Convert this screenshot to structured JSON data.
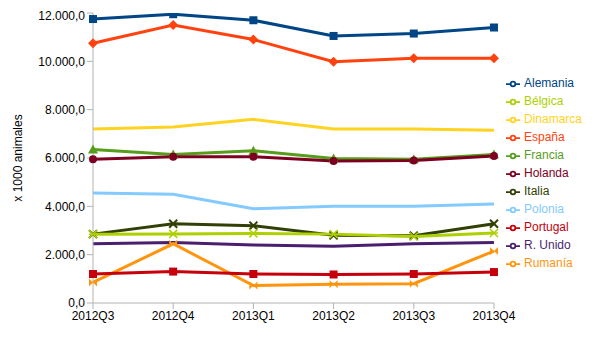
{
  "chart_data": {
    "type": "line",
    "y_label": "x 1000 animales",
    "categories": [
      "2012Q3",
      "2012Q4",
      "2013Q1",
      "2013Q2",
      "2013Q3",
      "2013Q4"
    ],
    "ylim": [
      0,
      12000
    ],
    "yticks": [
      {
        "value": 0,
        "label": "0,0"
      },
      {
        "value": 2000,
        "label": "2.000,0"
      },
      {
        "value": 4000,
        "label": "4.000,0"
      },
      {
        "value": 6000,
        "label": "6.000,0"
      },
      {
        "value": 8000,
        "label": "8.000,0"
      },
      {
        "value": 10000,
        "label": "10.000,0"
      },
      {
        "value": 12000,
        "label": "12.000,0"
      }
    ],
    "grid": false,
    "legend": "right",
    "series": [
      {
        "name": "Alemania",
        "color": "#004586",
        "marker": "square",
        "values": [
          11750,
          11950,
          11700,
          11050,
          11150,
          11400
        ]
      },
      {
        "name": "España",
        "color": "#ff420e",
        "marker": "diamond",
        "values": [
          10750,
          11500,
          10900,
          9980,
          10130,
          10130
        ]
      },
      {
        "name": "Dinamarca",
        "color": "#ffd320",
        "marker": "none",
        "values": [
          7200,
          7280,
          7600,
          7200,
          7200,
          7150
        ]
      },
      {
        "name": "Francia",
        "color": "#579d1c",
        "marker": "triangle",
        "values": [
          6350,
          6150,
          6300,
          5980,
          5950,
          6150
        ]
      },
      {
        "name": "Holanda",
        "color": "#7e0021",
        "marker": "circle",
        "values": [
          5950,
          6050,
          6050,
          5880,
          5900,
          6080
        ]
      },
      {
        "name": "Polonia",
        "color": "#83caff",
        "marker": "none",
        "values": [
          4550,
          4500,
          3900,
          4000,
          4000,
          4100
        ]
      },
      {
        "name": "Italia",
        "color": "#314004",
        "marker": "x",
        "values": [
          2850,
          3280,
          3200,
          2800,
          2780,
          3280
        ]
      },
      {
        "name": "Bélgica",
        "color": "#aecf00",
        "marker": "asterisk",
        "values": [
          2850,
          2860,
          2880,
          2850,
          2750,
          2900
        ]
      },
      {
        "name": "R. Unido",
        "color": "#4b1f6f",
        "marker": "none",
        "values": [
          2450,
          2500,
          2400,
          2350,
          2450,
          2500
        ]
      },
      {
        "name": "Rumanía",
        "color": "#ff950e",
        "marker": "bowtie",
        "values": [
          850,
          2450,
          720,
          780,
          800,
          2150
        ]
      },
      {
        "name": "Portugal",
        "color": "#c5000b",
        "marker": "square",
        "values": [
          1200,
          1300,
          1200,
          1180,
          1200,
          1280
        ]
      }
    ]
  }
}
